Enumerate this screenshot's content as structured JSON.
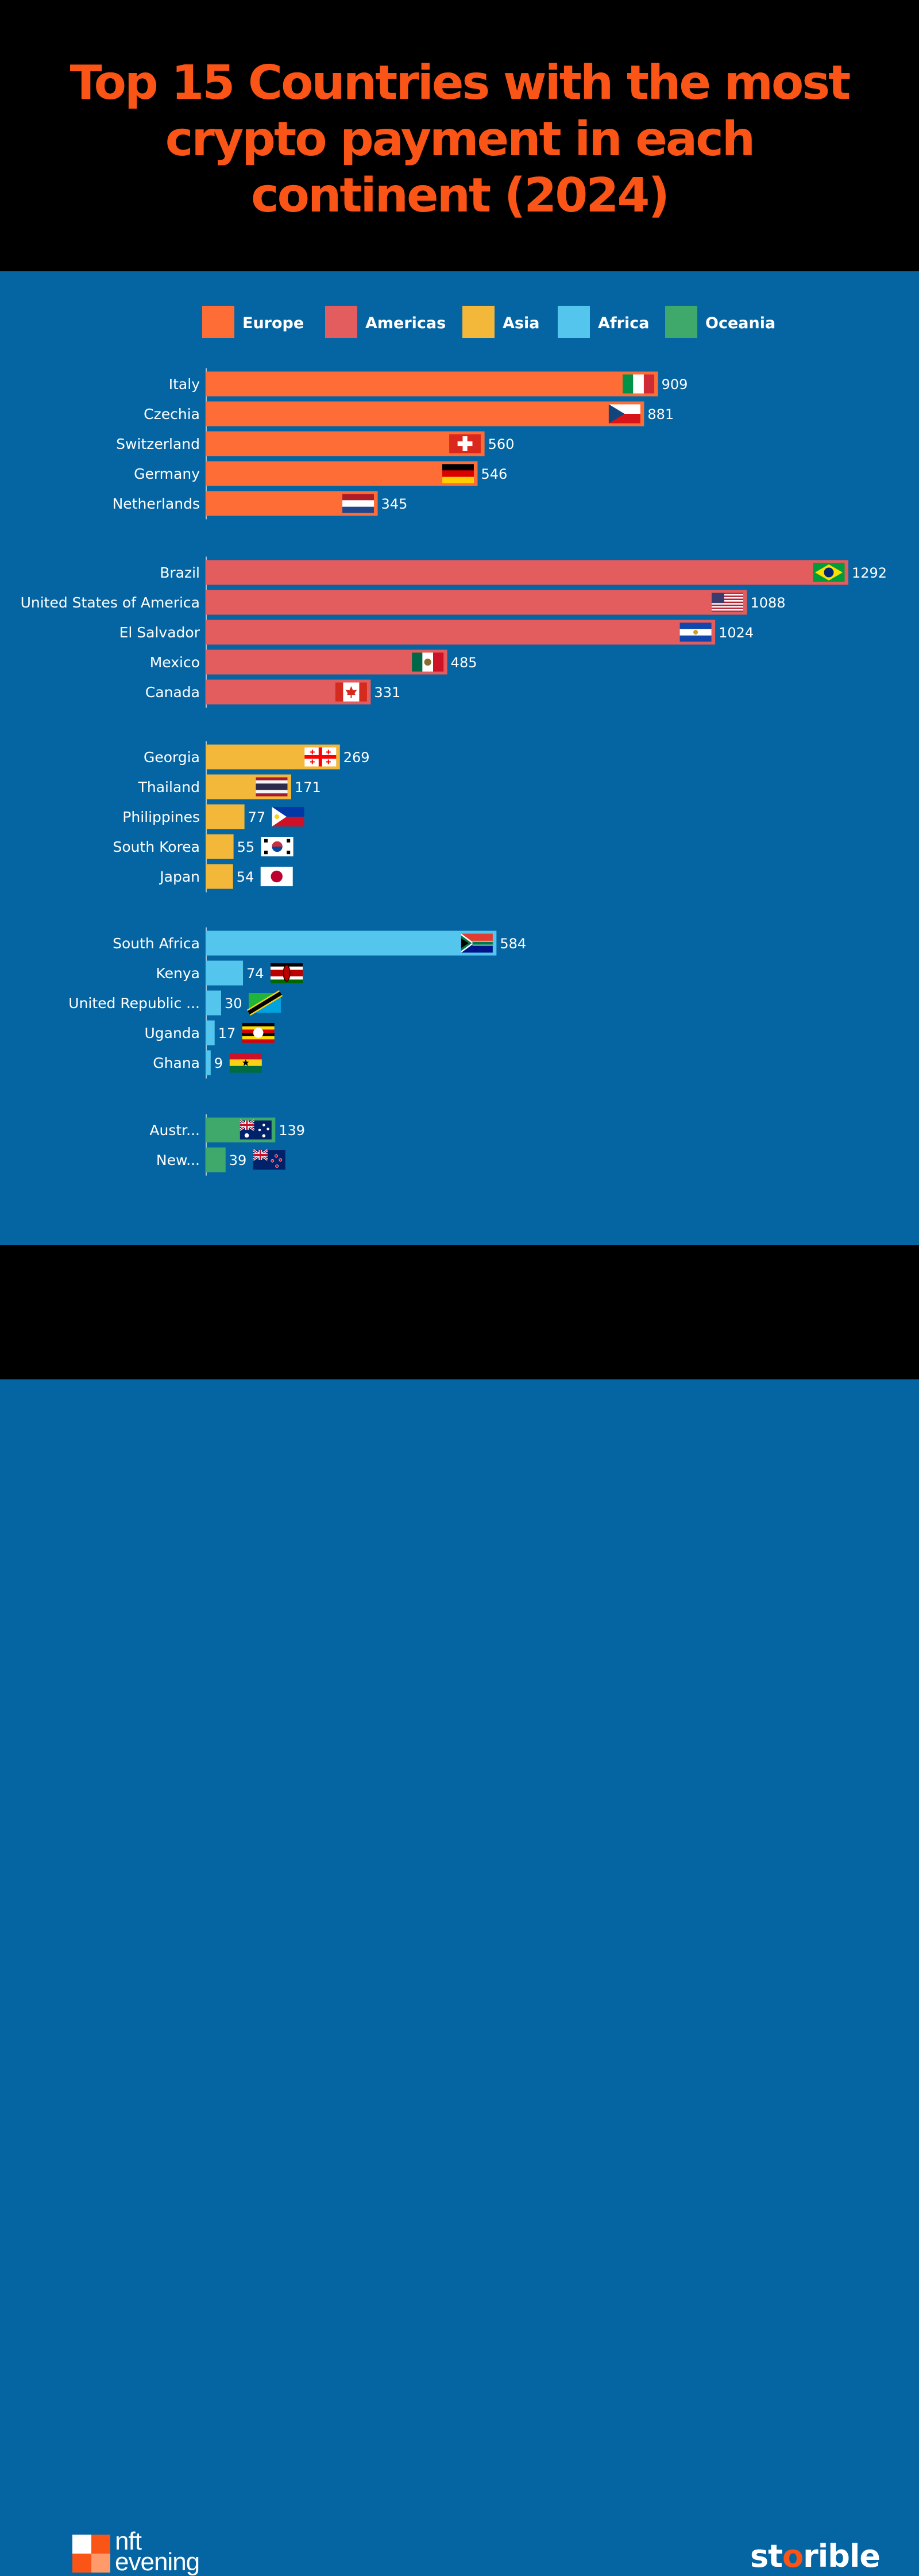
{
  "header": {
    "title": "Top 15 Countries with the most crypto payment in each continent (2024)"
  },
  "colors": {
    "Europe": "#fe6d36",
    "Americas": "#e35c5e",
    "Asia": "#f3b73a",
    "Africa": "#54c6ee",
    "Oceania": "#3ea96a"
  },
  "chart_data": {
    "type": "bar",
    "orientation": "horizontal",
    "title": "Top 15 Countries with the most crypto payment in each continent (2024)",
    "legend": {
      "placement": "top",
      "entries": [
        "Europe",
        "Americas",
        "Asia",
        "Africa",
        "Oceania"
      ]
    },
    "grid": false,
    "groups": [
      {
        "name": "Europe",
        "items": [
          {
            "label": "Italy",
            "value": 909,
            "flag": "italy"
          },
          {
            "label": "Czechia",
            "value": 881,
            "flag": "czechia"
          },
          {
            "label": "Switzerland",
            "value": 560,
            "flag": "switzerland"
          },
          {
            "label": "Germany",
            "value": 546,
            "flag": "germany"
          },
          {
            "label": "Netherlands",
            "value": 345,
            "flag": "netherlands"
          }
        ]
      },
      {
        "name": "Americas",
        "items": [
          {
            "label": "Brazil",
            "value": 1292,
            "flag": "brazil"
          },
          {
            "label": "United States of America",
            "value": 1088,
            "flag": "usa"
          },
          {
            "label": "El Salvador",
            "value": 1024,
            "flag": "el-salvador"
          },
          {
            "label": "Mexico",
            "value": 485,
            "flag": "mexico"
          },
          {
            "label": "Canada",
            "value": 331,
            "flag": "canada"
          }
        ]
      },
      {
        "name": "Asia",
        "items": [
          {
            "label": "Georgia",
            "value": 269,
            "flag": "georgia"
          },
          {
            "label": "Thailand",
            "value": 171,
            "flag": "thailand"
          },
          {
            "label": "Philippines",
            "value": 77,
            "flag": "philippines"
          },
          {
            "label": "South Korea",
            "value": 55,
            "flag": "south-korea"
          },
          {
            "label": "Japan",
            "value": 54,
            "flag": "japan"
          }
        ]
      },
      {
        "name": "Africa",
        "items": [
          {
            "label": "South Africa",
            "value": 584,
            "flag": "south-africa"
          },
          {
            "label": "Kenya",
            "value": 74,
            "flag": "kenya"
          },
          {
            "label": "United Republic ...",
            "value": 30,
            "flag": "tanzania"
          },
          {
            "label": "Uganda",
            "value": 17,
            "flag": "uganda"
          },
          {
            "label": "Ghana",
            "value": 9,
            "flag": "ghana"
          }
        ]
      },
      {
        "name": "Oceania",
        "items": [
          {
            "label": "Austr...",
            "value": 139,
            "flag": "australia"
          },
          {
            "label": "New...",
            "value": 39,
            "flag": "new-zealand"
          }
        ]
      }
    ]
  },
  "footer": {
    "left_logo": "nft evening",
    "left_logo_line1": "nft",
    "left_logo_line2": "evening",
    "right_logo": "storible"
  }
}
